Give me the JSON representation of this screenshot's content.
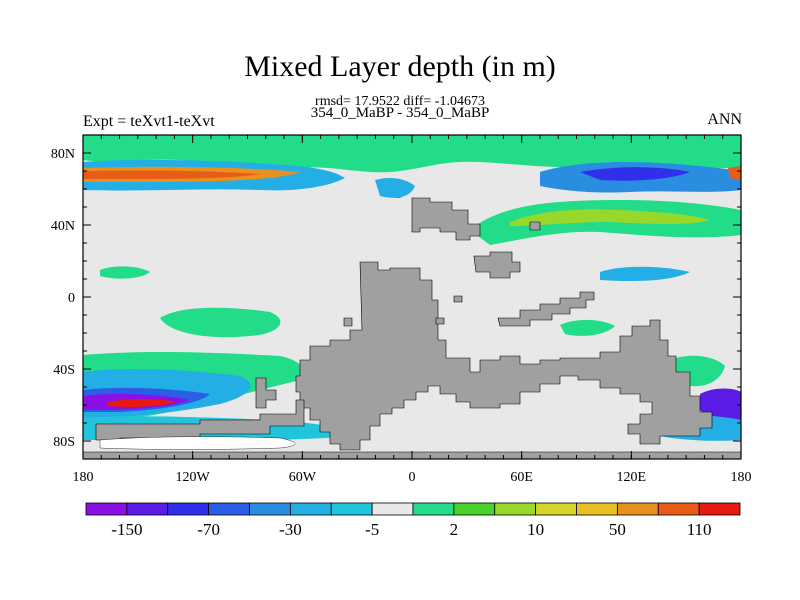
{
  "header": {
    "title": "Mixed Layer depth (in m)",
    "stats": "rmsd= 17.9522 diff= -1.04673",
    "cases": "354_0_MaBP - 354_0_MaBP",
    "left_label": "Expt = teXvt1-teXvt",
    "right_label": "ANN"
  },
  "axes": {
    "lat_labels": [
      "80N",
      "40N",
      "0",
      "40S",
      "80S"
    ],
    "lon_labels": [
      "180",
      "120W",
      "60W",
      "0",
      "60E",
      "120E",
      "180"
    ]
  },
  "colorbar": {
    "labels": [
      "-150",
      "-70",
      "-30",
      "-5",
      "2",
      "10",
      "50",
      "110"
    ],
    "colors": [
      "#8b10e6",
      "#5a1ce6",
      "#3030ea",
      "#2a5ee6",
      "#2a8ee0",
      "#24aee6",
      "#22c4dc",
      "#e8e8e8",
      "#22dc8a",
      "#46d22a",
      "#98d82a",
      "#d4d42a",
      "#e8c022",
      "#e89020",
      "#e85c16",
      "#e81a10"
    ]
  },
  "colors": {
    "land": "#a0a0a0",
    "neutral": "#e8e8e8",
    "frame": "#000000"
  }
}
